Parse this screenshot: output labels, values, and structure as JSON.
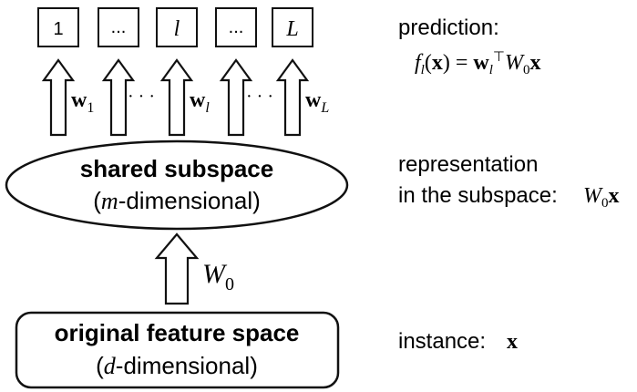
{
  "output_boxes": [
    {
      "label": "1",
      "italic": false
    },
    {
      "label": "...",
      "italic": false
    },
    {
      "label": "l",
      "italic": true
    },
    {
      "label": "...",
      "italic": false
    },
    {
      "label": "L",
      "italic": true
    }
  ],
  "weights": [
    {
      "bold": "w",
      "sub": "1"
    },
    {
      "dots": "· · ·"
    },
    {
      "bold": "w",
      "sub": "l"
    },
    {
      "dots": "· · ·"
    },
    {
      "bold": "w",
      "sub": "L"
    }
  ],
  "shared_subspace": {
    "title": "shared subspace",
    "subtitle_var": "m",
    "subtitle_rest": "-dimensional)",
    "subtitle_open": "("
  },
  "w0_label": {
    "main": "W",
    "sub": "0"
  },
  "original_space": {
    "title": "original feature space",
    "subtitle_open": "(",
    "subtitle_var": "d",
    "subtitle_rest": "-dimensional)"
  },
  "annotations": {
    "prediction_label": "prediction:",
    "prediction_formula": "f_l(x) = w_l^T W_0 x",
    "representation_line1": "representation",
    "representation_line2": "in the subspace:",
    "representation_formula": "W_0 x",
    "instance_label": "instance:",
    "instance_formula": "x"
  }
}
